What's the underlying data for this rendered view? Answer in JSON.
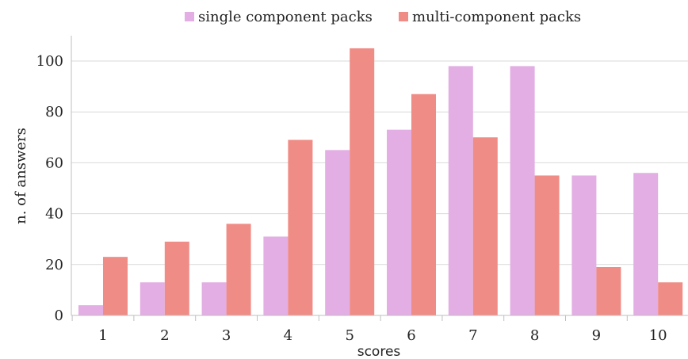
{
  "chart_data": {
    "type": "bar",
    "xlabel": "scores",
    "ylabel": "n. of answers",
    "ylim": [
      0,
      110
    ],
    "yticks": [
      0,
      20,
      40,
      60,
      80,
      100
    ],
    "grid": true,
    "legend_position": "top",
    "categories": [
      "1",
      "2",
      "3",
      "4",
      "5",
      "6",
      "7",
      "8",
      "9",
      "10"
    ],
    "series": [
      {
        "name": "single component packs",
        "color": "#e2aee3",
        "values": [
          4,
          13,
          13,
          31,
          65,
          73,
          98,
          98,
          55,
          56
        ]
      },
      {
        "name": "multi-component packs",
        "color": "#f08c86",
        "values": [
          23,
          29,
          36,
          69,
          105,
          87,
          70,
          55,
          19,
          13
        ]
      }
    ]
  }
}
